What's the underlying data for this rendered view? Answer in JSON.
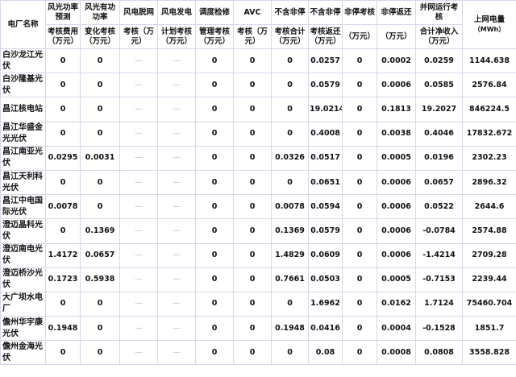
{
  "header": {
    "name_col": "电厂名称",
    "top": [
      "风光功率预测",
      "风光有功功率",
      "风电脱网",
      "风电发电",
      "调度检修",
      "AVC",
      "不含非停",
      "不含非停",
      "非停考核",
      "非停返还",
      "并网运行考核"
    ],
    "bottom": [
      "考核费用（万元）",
      "变化考核（万元）",
      "考核（万元）",
      "计划考核（万元）",
      "管理考核（万元）",
      "考核（万元）",
      "考核合计（万元）",
      "考核返还（万元）",
      "（万元）",
      "（万元）",
      "合计净收入（万元）"
    ],
    "energy_col": "上网电量",
    "energy_unit": "（MWh）"
  },
  "rows": [
    {
      "name": "白沙龙江光伏",
      "values": [
        "0",
        "0",
        "—",
        "—",
        "0",
        "0",
        "0",
        "0.0257",
        "0",
        "0.0002",
        "0.0259",
        "1144.638"
      ]
    },
    {
      "name": "白沙隆基光伏",
      "values": [
        "0",
        "0",
        "—",
        "—",
        "0",
        "0",
        "0",
        "0.0579",
        "0",
        "0.0006",
        "0.0585",
        "2576.84"
      ]
    },
    {
      "name": "昌江核电站",
      "values": [
        "0",
        "0",
        "—",
        "—",
        "0",
        "0",
        "0",
        "19.0214",
        "0",
        "0.1813",
        "19.2027",
        "846224.5"
      ]
    },
    {
      "name": "昌江华盛金光光伏",
      "values": [
        "0",
        "0",
        "—",
        "—",
        "0",
        "0",
        "0",
        "0.4008",
        "0",
        "0.0038",
        "0.4046",
        "17832.672"
      ]
    },
    {
      "name": "昌江南亚光伏",
      "values": [
        "0.0295",
        "0.0031",
        "—",
        "—",
        "0",
        "0",
        "0.0326",
        "0.0517",
        "0",
        "0.0005",
        "0.0196",
        "2302.23"
      ]
    },
    {
      "name": "昌江天利科光伏",
      "values": [
        "0",
        "0",
        "—",
        "—",
        "0",
        "0",
        "0",
        "0.0651",
        "0",
        "0.0006",
        "0.0657",
        "2896.32"
      ]
    },
    {
      "name": "昌江中电国际光伏",
      "values": [
        "0.0078",
        "0",
        "—",
        "—",
        "0",
        "0",
        "0.0078",
        "0.0594",
        "0",
        "0.0006",
        "0.0522",
        "2644.6"
      ]
    },
    {
      "name": "澄迈晶科光伏",
      "values": [
        "0",
        "0.1369",
        "—",
        "—",
        "0",
        "0",
        "0.1369",
        "0.0579",
        "0",
        "0.0006",
        "-0.0784",
        "2574.88"
      ]
    },
    {
      "name": "澄迈南电光伏",
      "values": [
        "1.4172",
        "0.0657",
        "—",
        "—",
        "0",
        "0",
        "1.4829",
        "0.0609",
        "0",
        "0.0006",
        "-1.4214",
        "2709.28"
      ]
    },
    {
      "name": "澄迈桥沙光伏",
      "values": [
        "0.1723",
        "0.5938",
        "—",
        "—",
        "0",
        "0",
        "0.7661",
        "0.0503",
        "0",
        "0.0005",
        "-0.7153",
        "2239.44"
      ]
    },
    {
      "name": "大广坝水电厂",
      "values": [
        "0",
        "0",
        "—",
        "—",
        "0",
        "0",
        "0",
        "1.6962",
        "0",
        "0.0162",
        "1.7124",
        "75460.704"
      ]
    },
    {
      "name": "儋州华宇康光伏",
      "values": [
        "0.1948",
        "0",
        "—",
        "—",
        "0",
        "0",
        "0.1948",
        "0.0416",
        "0",
        "0.0004",
        "-0.1528",
        "1851.7"
      ]
    },
    {
      "name": "儋州金海光伏",
      "values": [
        "0",
        "0",
        "—",
        "—",
        "0",
        "0",
        "0",
        "0.08",
        "0",
        "0.0008",
        "0.0808",
        "3558.828"
      ]
    }
  ],
  "colors": {
    "border": "#d3d8ea",
    "dash": "#bbbbbb",
    "text": "#111111"
  }
}
